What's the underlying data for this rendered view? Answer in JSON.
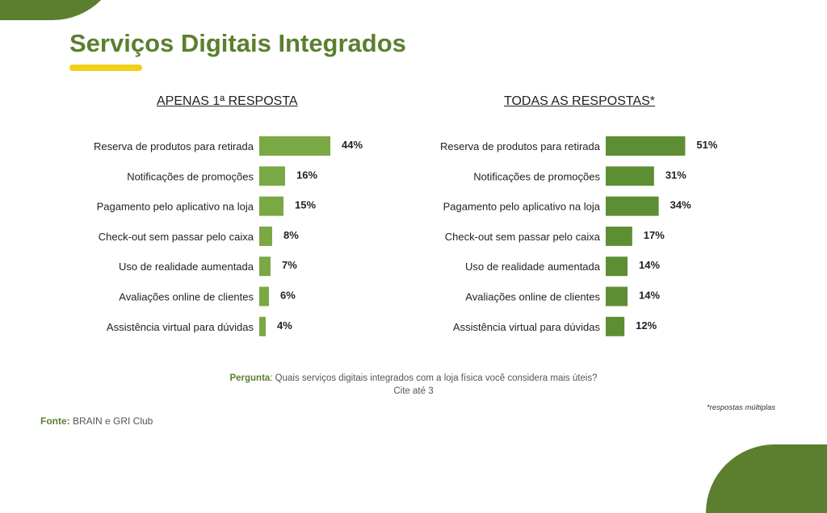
{
  "slide": {
    "title": "Serviços Digitais Integrados",
    "question_label": "Pergunta",
    "question_text": ": Quais serviços digitais integrados com a loja física você considera mais úteis?",
    "question_line2": "Cite até 3",
    "note": "*respostas múltiplas",
    "source_label": "Fonte:",
    "source_text": " BRAIN e GRI Club"
  },
  "colors": {
    "brand": "#5b7f2e",
    "accent": "#f2cf1a",
    "bar_left": "#7aa844",
    "bar_right": "#5e8e34"
  },
  "chart_data": [
    {
      "type": "bar",
      "orientation": "horizontal",
      "title": "APENAS 1ª RESPOSTA",
      "categories": [
        "Reserva de produtos para retirada",
        "Notificações de promoções",
        "Pagamento pelo aplicativo na loja",
        "Check-out sem passar pelo caixa",
        "Uso de realidade aumentada",
        "Avaliações online de clientes",
        "Assistência virtual para dúvidas"
      ],
      "values": [
        44,
        16,
        15,
        8,
        7,
        6,
        4
      ],
      "value_labels": [
        "44%",
        "16%",
        "15%",
        "8%",
        "7%",
        "6%",
        "4%"
      ],
      "unit": "%",
      "grid": false
    },
    {
      "type": "bar",
      "orientation": "horizontal",
      "title": "TODAS AS RESPOSTAS*",
      "categories": [
        "Reserva de produtos para retirada",
        "Notificações de promoções",
        "Pagamento pelo aplicativo na loja",
        "Check-out sem passar pelo caixa",
        "Uso de realidade aumentada",
        "Avaliações online de clientes",
        "Assistência virtual para dúvidas"
      ],
      "values": [
        51,
        31,
        34,
        17,
        14,
        14,
        12
      ],
      "value_labels": [
        "51%",
        "31%",
        "34%",
        "17%",
        "14%",
        "14%",
        "12%"
      ],
      "unit": "%",
      "grid": false
    }
  ]
}
